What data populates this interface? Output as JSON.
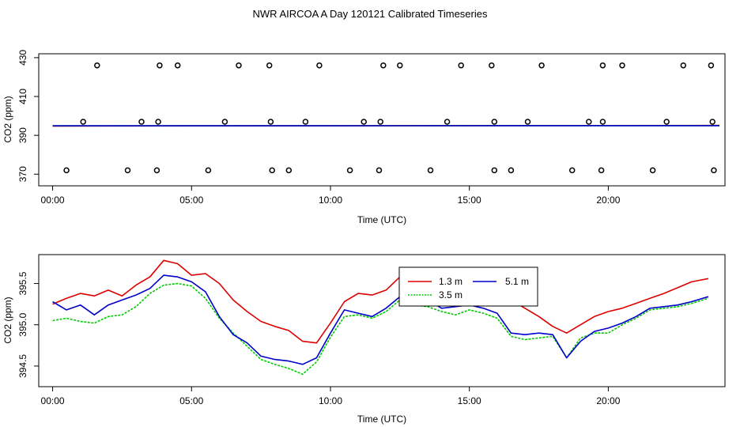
{
  "title": "NWR AIRCOA A  Day 120121  Calibrated Timeseries",
  "chart_data": [
    {
      "type": "scatter",
      "xlabel": "Time (UTC)",
      "ylabel": "CO2 (ppm)",
      "xlim": [
        -0.5,
        24.2
      ],
      "ylim": [
        364,
        432
      ],
      "x_ticks": [
        0,
        5,
        10,
        15,
        20
      ],
      "x_tick_labels": [
        "00:00",
        "05:00",
        "10:00",
        "15:00",
        "20:00"
      ],
      "y_ticks": [
        370,
        390,
        410,
        430
      ],
      "y_tick_labels": [
        "370",
        "390",
        "410",
        "430"
      ],
      "grid": false,
      "calibration_points": [
        {
          "x": 1.6,
          "y": 426
        },
        {
          "x": 3.85,
          "y": 426
        },
        {
          "x": 4.5,
          "y": 426
        },
        {
          "x": 6.7,
          "y": 426
        },
        {
          "x": 7.8,
          "y": 426
        },
        {
          "x": 9.6,
          "y": 426
        },
        {
          "x": 11.9,
          "y": 426
        },
        {
          "x": 12.5,
          "y": 426
        },
        {
          "x": 14.7,
          "y": 426
        },
        {
          "x": 15.8,
          "y": 426
        },
        {
          "x": 17.6,
          "y": 426
        },
        {
          "x": 19.8,
          "y": 426
        },
        {
          "x": 20.5,
          "y": 426
        },
        {
          "x": 22.7,
          "y": 426
        },
        {
          "x": 23.7,
          "y": 426
        },
        {
          "x": 1.1,
          "y": 397
        },
        {
          "x": 3.2,
          "y": 397
        },
        {
          "x": 3.8,
          "y": 397
        },
        {
          "x": 6.2,
          "y": 397
        },
        {
          "x": 7.85,
          "y": 397
        },
        {
          "x": 9.1,
          "y": 397
        },
        {
          "x": 11.2,
          "y": 397
        },
        {
          "x": 11.8,
          "y": 397
        },
        {
          "x": 14.2,
          "y": 397
        },
        {
          "x": 15.9,
          "y": 397
        },
        {
          "x": 17.1,
          "y": 397
        },
        {
          "x": 19.3,
          "y": 397
        },
        {
          "x": 19.8,
          "y": 397
        },
        {
          "x": 22.1,
          "y": 397
        },
        {
          "x": 23.75,
          "y": 397
        },
        {
          "x": 0.5,
          "y": 372
        },
        {
          "x": 2.7,
          "y": 372
        },
        {
          "x": 3.75,
          "y": 372
        },
        {
          "x": 5.6,
          "y": 372
        },
        {
          "x": 7.9,
          "y": 372
        },
        {
          "x": 8.5,
          "y": 372
        },
        {
          "x": 10.7,
          "y": 372
        },
        {
          "x": 11.75,
          "y": 372
        },
        {
          "x": 13.6,
          "y": 372
        },
        {
          "x": 15.9,
          "y": 372
        },
        {
          "x": 16.5,
          "y": 372
        },
        {
          "x": 18.7,
          "y": 372
        },
        {
          "x": 19.75,
          "y": 372
        },
        {
          "x": 21.6,
          "y": 372
        },
        {
          "x": 23.8,
          "y": 372
        }
      ],
      "series": [
        {
          "name": "1.3 m",
          "color": "#dd0000",
          "x": [
            0,
            24
          ],
          "values": [
            394.8,
            395.1
          ]
        },
        {
          "name": "3.5 m",
          "color": "#00cc00",
          "x": [
            0,
            24
          ],
          "values": [
            394.9,
            395.0
          ]
        },
        {
          "name": "5.1 m",
          "color": "#0000cc",
          "x": [
            0,
            24
          ],
          "values": [
            394.9,
            395.0
          ]
        }
      ]
    },
    {
      "type": "line",
      "xlabel": "Time (UTC)",
      "ylabel": "CO2 (ppm)",
      "xlim": [
        -0.5,
        24.2
      ],
      "ylim": [
        394.25,
        395.85
      ],
      "x_ticks": [
        0,
        5,
        10,
        15,
        20
      ],
      "x_tick_labels": [
        "00:00",
        "05:00",
        "10:00",
        "15:00",
        "20:00"
      ],
      "y_ticks": [
        394.5,
        395.0,
        395.5
      ],
      "y_tick_labels": [
        "394.5",
        "395.0",
        "395.5"
      ],
      "grid": false,
      "legend": {
        "position": "top-center",
        "entries": [
          "1.3 m",
          "5.1 m",
          "3.5 m"
        ]
      },
      "series": [
        {
          "name": "1.3 m",
          "color": "#dd0000",
          "x": [
            0,
            0.5,
            1,
            1.5,
            2,
            2.5,
            3,
            3.5,
            4,
            4.5,
            5,
            5.5,
            6,
            6.5,
            7,
            7.5,
            8,
            8.5,
            9,
            9.5,
            10,
            10.5,
            11,
            11.5,
            12,
            12.5,
            13,
            13.5,
            14,
            14.5,
            15,
            15.5,
            16,
            16.5,
            17,
            17.5,
            18,
            18.5,
            19,
            19.5,
            20,
            20.5,
            21,
            21.5,
            22,
            22.5,
            23,
            23.6
          ],
          "values": [
            395.25,
            395.32,
            395.38,
            395.35,
            395.42,
            395.35,
            395.48,
            395.58,
            395.78,
            395.74,
            395.6,
            395.62,
            395.5,
            395.3,
            395.16,
            395.04,
            394.98,
            394.93,
            394.8,
            394.78,
            395.02,
            395.28,
            395.38,
            395.36,
            395.42,
            395.58,
            395.6,
            395.55,
            395.5,
            395.56,
            395.5,
            395.45,
            395.42,
            395.3,
            395.2,
            395.1,
            394.98,
            394.9,
            395.0,
            395.1,
            395.16,
            395.2,
            395.26,
            395.32,
            395.38,
            395.45,
            395.52,
            395.56
          ]
        },
        {
          "name": "3.5 m",
          "color": "#00cc00",
          "x": [
            0,
            0.5,
            1,
            1.5,
            2,
            2.5,
            3,
            3.5,
            4,
            4.5,
            5,
            5.5,
            6,
            6.5,
            7,
            7.5,
            8,
            8.5,
            9,
            9.5,
            10,
            10.5,
            11,
            11.5,
            12,
            12.5,
            13,
            13.5,
            14,
            14.5,
            15,
            15.5,
            16,
            16.5,
            17,
            17.5,
            18,
            18.5,
            19,
            19.5,
            20,
            20.5,
            21,
            21.5,
            22,
            22.5,
            23,
            23.6
          ],
          "values": [
            395.05,
            395.08,
            395.04,
            395.02,
            395.1,
            395.12,
            395.22,
            395.38,
            395.48,
            395.5,
            395.47,
            395.32,
            395.08,
            394.9,
            394.74,
            394.58,
            394.52,
            394.47,
            394.4,
            394.55,
            394.85,
            395.1,
            395.12,
            395.08,
            395.16,
            395.3,
            395.24,
            395.22,
            395.16,
            395.12,
            395.18,
            395.14,
            395.08,
            394.86,
            394.82,
            394.84,
            394.86,
            394.6,
            394.84,
            394.9,
            394.9,
            395.0,
            395.08,
            395.18,
            395.2,
            395.22,
            395.26,
            395.32
          ]
        },
        {
          "name": "5.1 m",
          "color": "#0000cc",
          "x": [
            0,
            0.5,
            1,
            1.5,
            2,
            2.5,
            3,
            3.5,
            4,
            4.5,
            5,
            5.5,
            6,
            6.5,
            7,
            7.5,
            8,
            8.5,
            9,
            9.5,
            10,
            10.5,
            11,
            11.5,
            12,
            12.5,
            13,
            13.5,
            14,
            14.5,
            15,
            15.5,
            16,
            16.5,
            17,
            17.5,
            18,
            18.5,
            19,
            19.5,
            20,
            20.5,
            21,
            21.5,
            22,
            22.5,
            23,
            23.6
          ],
          "values": [
            395.28,
            395.18,
            395.24,
            395.12,
            395.24,
            395.3,
            395.36,
            395.44,
            395.6,
            395.58,
            395.52,
            395.4,
            395.1,
            394.88,
            394.78,
            394.62,
            394.58,
            394.56,
            394.52,
            394.6,
            394.9,
            395.18,
            395.14,
            395.1,
            395.2,
            395.34,
            395.28,
            395.3,
            395.2,
            395.22,
            395.24,
            395.2,
            395.14,
            394.9,
            394.88,
            394.9,
            394.88,
            394.6,
            394.8,
            394.92,
            394.96,
            395.02,
            395.1,
            395.2,
            395.22,
            395.24,
            395.28,
            395.34
          ]
        }
      ]
    }
  ]
}
